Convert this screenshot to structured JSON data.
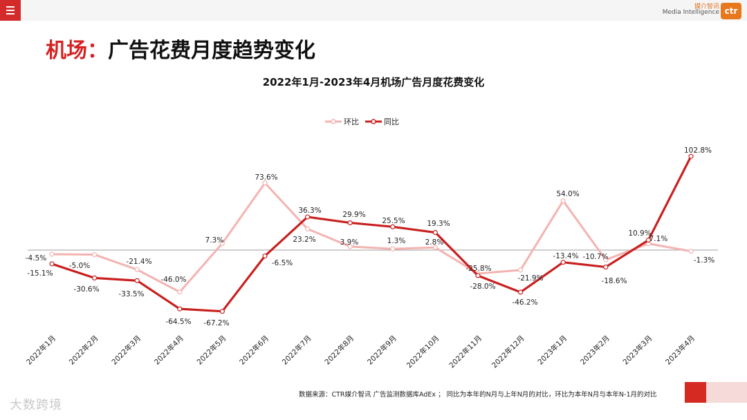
{
  "header": {
    "menu_icon": "menu-icon",
    "logo_cn": "媒介智讯",
    "logo_en": "Media Intelligence",
    "logo_mark": "ctr"
  },
  "page": {
    "title_prefix": "机场：",
    "title_main": "广告花费月度趋势变化"
  },
  "footer": {
    "source": "数据来源：CTR媒介智讯 广告监测数据库AdEx ； 同比为本年的N月与上年N月的对比，环比为本年N月与本年N-1月的对比",
    "watermark": "大数跨境"
  },
  "colors": {
    "accent": "#d52222",
    "mom": "#f4b3b0",
    "yoy": "#c8201f"
  },
  "chart_data": {
    "type": "line",
    "title": "2022年1月-2023年4月机场广告月度花费变化",
    "legend_position": "top-center",
    "grid": false,
    "categories": [
      "2022年1月",
      "2022年2月",
      "2022年3月",
      "2022年4月",
      "2022年5月",
      "2022年6月",
      "2022年7月",
      "2022年8月",
      "2022年9月",
      "2022年10月",
      "2022年11月",
      "2022年12月",
      "2023年1月",
      "2023年2月",
      "2023年3月",
      "2023年4月"
    ],
    "series": [
      {
        "name": "环比",
        "values": [
          -4.5,
          -5.0,
          -21.4,
          -46.0,
          7.3,
          73.6,
          23.2,
          3.9,
          1.3,
          2.8,
          -25.8,
          -21.9,
          54.0,
          -10.7,
          7.1,
          -1.3
        ],
        "labels": [
          "-4.5%",
          "-5.0%",
          "-21.4%",
          "-46.0%",
          "7.3%",
          "73.6%",
          "23.2%",
          "3.9%",
          "1.3%",
          "2.8%",
          "-25.8%",
          "-21.9%",
          "54.0%",
          "-10.7%",
          "7.1%",
          "-1.3%"
        ]
      },
      {
        "name": "同比",
        "values": [
          -15.1,
          -30.6,
          -33.5,
          -64.5,
          -67.2,
          -6.5,
          36.3,
          29.9,
          25.5,
          19.3,
          -28.0,
          -46.2,
          -13.4,
          -18.6,
          10.9,
          102.8
        ],
        "labels": [
          "-15.1%",
          "-30.6%",
          "-33.5%",
          "-64.5%",
          "-67.2%",
          "-6.5%",
          "36.3%",
          "29.9%",
          "25.5%",
          "19.3%",
          "-28.0%",
          "-46.2%",
          "-13.4%",
          "-18.6%",
          "10.9%",
          "102.8%"
        ]
      }
    ]
  }
}
